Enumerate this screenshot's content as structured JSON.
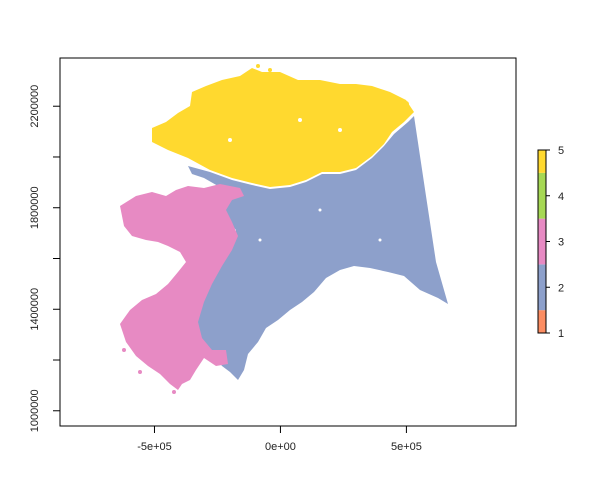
{
  "map": {
    "type": "raster-map",
    "x_axis": {
      "ticks": [
        "-5e+05",
        "0e+00",
        "5e+05"
      ],
      "tick_values": [
        -500000,
        0,
        500000
      ],
      "range": [
        -875000,
        935000
      ]
    },
    "y_axis": {
      "ticks": [
        "1000000",
        "1400000",
        "1800000",
        "2200000"
      ],
      "tick_values": [
        1000000,
        1400000,
        1800000,
        2200000
      ],
      "range": [
        940000,
        2390000
      ]
    },
    "classes": [
      {
        "value": 1,
        "color": "#fc8d62"
      },
      {
        "value": 2,
        "color": "#8da0cb"
      },
      {
        "value": 3,
        "color": "#e78ac3"
      },
      {
        "value": 4,
        "color": "#a6d854"
      },
      {
        "value": 5,
        "color": "#ffd92f"
      }
    ],
    "legend": {
      "placement": "right",
      "labels": [
        "1",
        "2",
        "3",
        "4",
        "5"
      ]
    }
  }
}
